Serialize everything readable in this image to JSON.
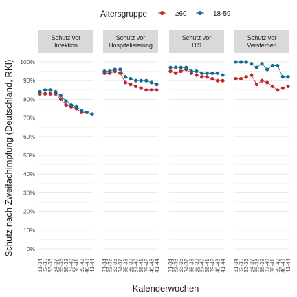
{
  "chart_data": {
    "type": "line",
    "ylabel": "Schutz nach Zweifachimpfung (Deutschland, RKI)",
    "xlabel": "Kalenderwochen",
    "legend": {
      "title": "Altersgruppe",
      "placement": "top"
    },
    "ylim": [
      0,
      100
    ],
    "yticks": [
      "0%",
      "10%",
      "20%",
      "30%",
      "40%",
      "50%",
      "60%",
      "70%",
      "80%",
      "90%",
      "100%"
    ],
    "x": [
      "31-34",
      "32-35",
      "33-36",
      "34-37",
      "35-38",
      "36-39",
      "37-40",
      "38-41",
      "39-42",
      "40-43",
      "41-44"
    ],
    "grid": true,
    "colors": {
      "≥60": "#C0282D",
      "18-59": "#0F6D8C",
      "strip_bg": "#D9D9D9",
      "grid": "#E3E3E3"
    },
    "panels": [
      {
        "title": [
          "Schutz vor",
          "Infektion"
        ],
        "series": [
          {
            "name": "≥60",
            "values": [
              83,
              83,
              83,
              83,
              80,
              77,
              76,
              75,
              73,
              73,
              72
            ]
          },
          {
            "name": "18-59",
            "values": [
              84,
              85,
              85,
              84,
              82,
              79,
              77,
              76,
              74,
              73,
              72
            ]
          }
        ]
      },
      {
        "title": [
          "Schutz vor",
          "Hospitalisierung"
        ],
        "series": [
          {
            "name": "≥60",
            "values": [
              94,
              94,
              95,
              94,
              89,
              88,
              87,
              86,
              85,
              85,
              85
            ]
          },
          {
            "name": "18-59",
            "values": [
              95,
              95,
              96,
              96,
              92,
              91,
              90,
              90,
              90,
              89,
              88
            ]
          }
        ]
      },
      {
        "title": [
          "Schutz vor",
          "ITS"
        ],
        "series": [
          {
            "name": "≥60",
            "values": [
              95,
              94,
              95,
              96,
              94,
              93,
              92,
              92,
              91,
              90,
              90
            ]
          },
          {
            "name": "18-59",
            "values": [
              97,
              97,
              97,
              97,
              95,
              95,
              94,
              94,
              94,
              94,
              93
            ]
          }
        ]
      },
      {
        "title": [
          "Schutz vor",
          "Versterben"
        ],
        "series": [
          {
            "name": "≥60",
            "values": [
              91,
              91,
              92,
              93,
              88,
              90,
              89,
              87,
              85,
              86,
              87
            ]
          },
          {
            "name": "18-59",
            "values": [
              100,
              100,
              100,
              99,
              97,
              99,
              96,
              98,
              98,
              92,
              92
            ]
          }
        ]
      }
    ]
  }
}
